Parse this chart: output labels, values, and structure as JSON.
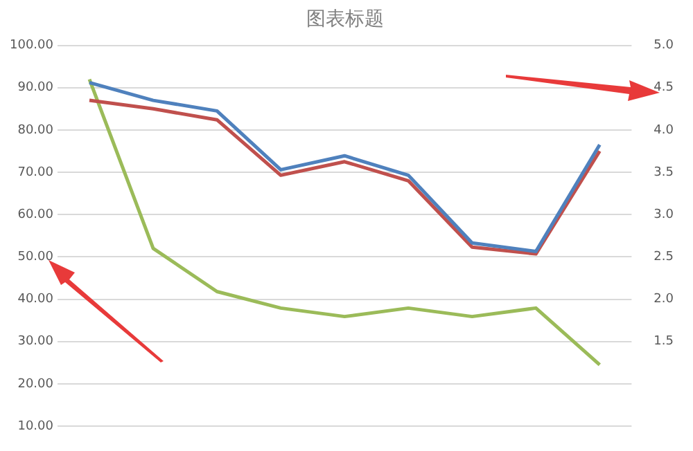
{
  "chart_data": {
    "type": "line",
    "title": "图表标题",
    "categories": [
      null,
      null,
      null,
      null,
      null,
      null,
      null,
      null,
      null
    ],
    "series": [
      {
        "color": "#4f81bd",
        "values": [
          91.2,
          87,
          84.5,
          70.6,
          73.9,
          69.3,
          53.3,
          51.3,
          76.5
        ]
      },
      {
        "color": "#c0504d",
        "values": [
          87,
          85,
          82.4,
          69.3,
          72.5,
          68,
          52.3,
          50.7,
          75
        ]
      },
      {
        "color": "#9bbb59",
        "values": [
          92,
          52,
          41.8,
          37.9,
          35.9,
          37.9,
          35.9,
          37.9,
          24.5
        ]
      }
    ],
    "ylim": [
      10,
      100
    ],
    "yticks": [
      {
        "value": 10,
        "label": "10.00"
      },
      {
        "value": 20,
        "label": "20.00"
      },
      {
        "value": 30,
        "label": "30.00"
      },
      {
        "value": 40,
        "label": "40.00"
      },
      {
        "value": 50,
        "label": "50.00"
      },
      {
        "value": 60,
        "label": "60.00"
      },
      {
        "value": 70,
        "label": "70.00"
      },
      {
        "value": 80,
        "label": "80.00"
      },
      {
        "value": 90,
        "label": "90.00"
      },
      {
        "value": 100,
        "label": "100.00"
      }
    ],
    "y2lim": [
      0.5,
      5
    ],
    "y2ticks": [
      {
        "value": 0.5,
        "label": null
      },
      {
        "value": 1,
        "label": null
      },
      {
        "value": 1.5,
        "label": "1.5"
      },
      {
        "value": 2,
        "label": "2.0"
      },
      {
        "value": 2.5,
        "label": "2.5"
      },
      {
        "value": 3,
        "label": "3.0"
      },
      {
        "value": 3.5,
        "label": "3.5"
      },
      {
        "value": 4,
        "label": "4.0"
      },
      {
        "value": 4.5,
        "label": "4.5"
      },
      {
        "value": 5,
        "label": "5.0"
      }
    ],
    "grid": "y",
    "legend": false,
    "marker": "none",
    "line_style": "solid"
  }
}
